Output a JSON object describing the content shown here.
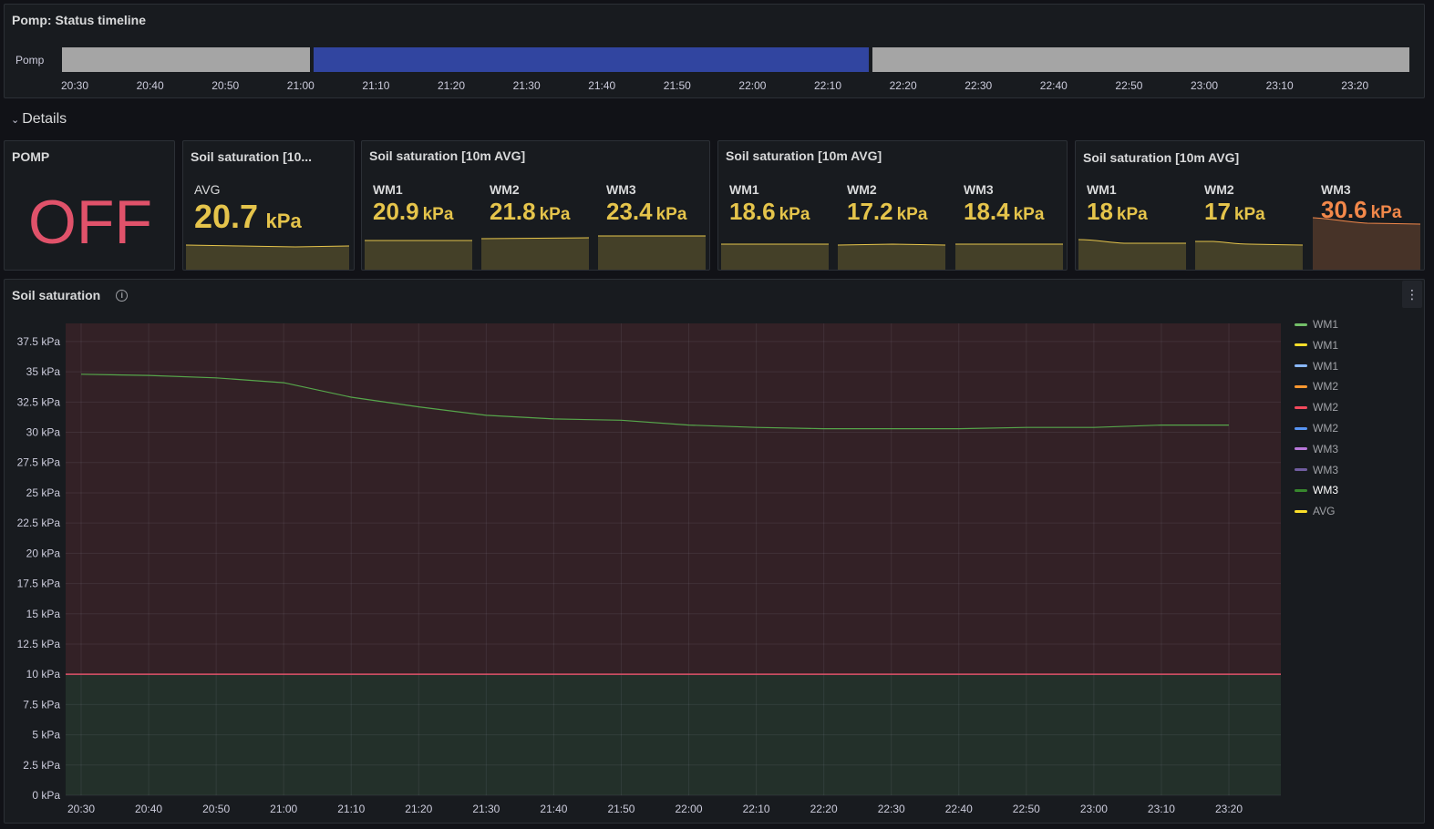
{
  "timeline": {
    "title": "Pomp: Status timeline",
    "row_label": "Pomp",
    "ticks": [
      "20:30",
      "20:40",
      "20:50",
      "21:00",
      "21:10",
      "21:20",
      "21:30",
      "21:40",
      "21:50",
      "22:00",
      "22:10",
      "22:20",
      "22:30",
      "22:40",
      "22:50",
      "23:00",
      "23:10",
      "23:20"
    ],
    "colors": {
      "off": "#a5a5a5",
      "on": "#3145a0"
    }
  },
  "details_row": {
    "label": "Details",
    "icon": "chevron-down-icon"
  },
  "pomp_stat": {
    "title": "POMP",
    "value": "OFF",
    "color": "#e0526a"
  },
  "avg_stat": {
    "title": "Soil saturation [10...",
    "label": "AVG",
    "value": "20.7",
    "unit": "kPa",
    "color": "#e5c44b"
  },
  "group1": {
    "title": "Soil saturation [10m AVG]",
    "items": [
      {
        "label": "WM1",
        "value": "20.9",
        "unit": "kPa"
      },
      {
        "label": "WM2",
        "value": "21.8",
        "unit": "kPa"
      },
      {
        "label": "WM3",
        "value": "23.4",
        "unit": "kPa"
      }
    ]
  },
  "group2": {
    "title": "Soil saturation [10m AVG]",
    "items": [
      {
        "label": "WM1",
        "value": "18.6",
        "unit": "kPa"
      },
      {
        "label": "WM2",
        "value": "17.2",
        "unit": "kPa"
      },
      {
        "label": "WM3",
        "value": "18.4",
        "unit": "kPa"
      }
    ]
  },
  "group3": {
    "title": "Soil saturation [10m AVG]",
    "items": [
      {
        "label": "WM1",
        "value": "18",
        "unit": "kPa"
      },
      {
        "label": "WM2",
        "value": "17",
        "unit": "kPa"
      },
      {
        "label": "WM3",
        "value": "30.6",
        "unit": "kPa"
      }
    ]
  },
  "colors": {
    "yellow": "#e5c44b",
    "orange": "#f2884a",
    "threshold_red": "#e0526a",
    "series_green": "#56a64b"
  },
  "soil_panel": {
    "title": "Soil saturation",
    "info_icon": "info-icon",
    "menu_icon": "kebab-menu-icon",
    "legend": [
      {
        "name": "WM1",
        "color": "#73bf69"
      },
      {
        "name": "WM1",
        "color": "#fade2a"
      },
      {
        "name": "WM1",
        "color": "#8ab8ff"
      },
      {
        "name": "WM2",
        "color": "#ff9830"
      },
      {
        "name": "WM2",
        "color": "#f2495c"
      },
      {
        "name": "WM2",
        "color": "#5794f2"
      },
      {
        "name": "WM3",
        "color": "#b877d9"
      },
      {
        "name": "WM3",
        "color": "#705da0"
      },
      {
        "name": "WM3",
        "color": "#37872d"
      },
      {
        "name": "AVG",
        "color": "#fade2a"
      }
    ]
  },
  "chart_data": {
    "type": "line",
    "x": [
      "20:30",
      "20:40",
      "20:50",
      "21:00",
      "21:10",
      "21:20",
      "21:30",
      "21:40",
      "21:50",
      "22:00",
      "22:10",
      "22:20",
      "22:30",
      "22:40",
      "22:50",
      "23:00",
      "23:10",
      "23:20"
    ],
    "series": [
      {
        "name": "WM3",
        "values": [
          34.8,
          34.7,
          34.5,
          34.1,
          32.9,
          32.1,
          31.4,
          31.1,
          31.0,
          30.6,
          30.4,
          30.3,
          30.3,
          30.3,
          30.4,
          30.4,
          30.6,
          30.6
        ]
      }
    ],
    "yticks": [
      "0 kPa",
      "2.5 kPa",
      "5 kPa",
      "7.5 kPa",
      "10 kPa",
      "12.5 kPa",
      "15 kPa",
      "17.5 kPa",
      "20 kPa",
      "22.5 kPa",
      "25 kPa",
      "27.5 kPa",
      "30 kPa",
      "32.5 kPa",
      "35 kPa",
      "37.5 kPa"
    ],
    "ylim": [
      0,
      39
    ],
    "threshold": 10,
    "threshold_color": "#e0526a",
    "grid": true,
    "legend_position": "right"
  }
}
